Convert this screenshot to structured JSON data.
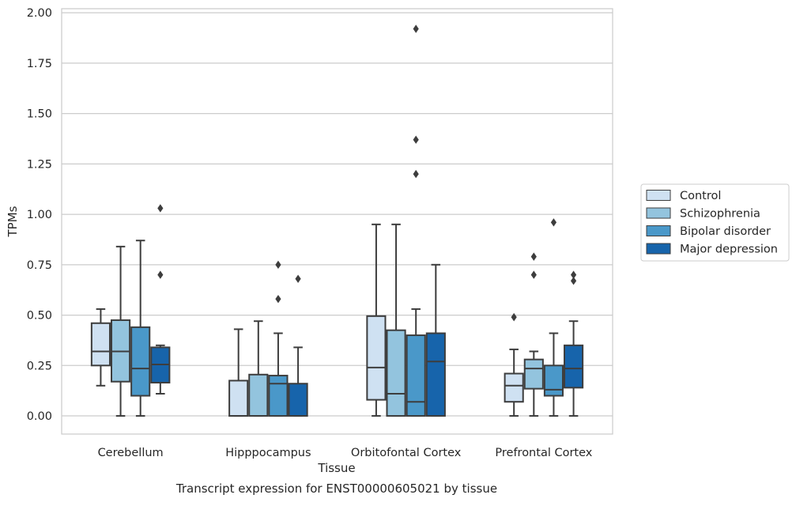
{
  "chart_data": {
    "type": "box",
    "title": "",
    "caption": "Transcript expression for ENST00000605021 by tissue",
    "xlabel": "Tissue",
    "ylabel": "TPMs",
    "ylim": [
      -0.09,
      2.02
    ],
    "yticks": [
      "0.00",
      "0.25",
      "0.50",
      "0.75",
      "1.00",
      "1.25",
      "1.50",
      "1.75",
      "2.00"
    ],
    "grid": "horizontal",
    "legend_position": "right",
    "categories": [
      "Cerebellum",
      "Hipppocampus",
      "Orbitofontal Cortex",
      "Prefrontal Cortex"
    ],
    "series": [
      {
        "name": "Control",
        "color": "#cfe1f2",
        "boxes": [
          {
            "whisker_low": 0.15,
            "q1": 0.25,
            "median": 0.32,
            "q3": 0.46,
            "whisker_high": 0.53,
            "outliers": []
          },
          {
            "whisker_low": 0.0,
            "q1": 0.0,
            "median": 0.0,
            "q3": 0.175,
            "whisker_high": 0.43,
            "outliers": []
          },
          {
            "whisker_low": 0.0,
            "q1": 0.08,
            "median": 0.24,
            "q3": 0.495,
            "whisker_high": 0.95,
            "outliers": []
          },
          {
            "whisker_low": 0.0,
            "q1": 0.07,
            "median": 0.15,
            "q3": 0.21,
            "whisker_high": 0.33,
            "outliers": [
              0.49
            ]
          }
        ]
      },
      {
        "name": "Schizophrenia",
        "color": "#93c4de",
        "boxes": [
          {
            "whisker_low": 0.0,
            "q1": 0.17,
            "median": 0.32,
            "q3": 0.475,
            "whisker_high": 0.84,
            "outliers": []
          },
          {
            "whisker_low": 0.0,
            "q1": 0.0,
            "median": 0.0,
            "q3": 0.205,
            "whisker_high": 0.47,
            "outliers": []
          },
          {
            "whisker_low": 0.0,
            "q1": 0.0,
            "median": 0.11,
            "q3": 0.425,
            "whisker_high": 0.95,
            "outliers": []
          },
          {
            "whisker_low": 0.0,
            "q1": 0.135,
            "median": 0.235,
            "q3": 0.28,
            "whisker_high": 0.32,
            "outliers": [
              0.7,
              0.79
            ]
          }
        ]
      },
      {
        "name": "Bipolar disorder",
        "color": "#4a98c9",
        "boxes": [
          {
            "whisker_low": 0.0,
            "q1": 0.1,
            "median": 0.235,
            "q3": 0.44,
            "whisker_high": 0.87,
            "outliers": []
          },
          {
            "whisker_low": 0.0,
            "q1": 0.0,
            "median": 0.16,
            "q3": 0.2,
            "whisker_high": 0.41,
            "outliers": [
              0.58,
              0.75
            ]
          },
          {
            "whisker_low": 0.0,
            "q1": 0.0,
            "median": 0.07,
            "q3": 0.4,
            "whisker_high": 0.53,
            "outliers": [
              1.2,
              1.37,
              1.92
            ]
          },
          {
            "whisker_low": 0.0,
            "q1": 0.1,
            "median": 0.13,
            "q3": 0.25,
            "whisker_high": 0.41,
            "outliers": [
              0.96
            ]
          }
        ]
      },
      {
        "name": "Major depression",
        "color": "#1764ab",
        "boxes": [
          {
            "whisker_low": 0.11,
            "q1": 0.165,
            "median": 0.255,
            "q3": 0.34,
            "whisker_high": 0.35,
            "outliers": [
              0.7,
              1.03
            ]
          },
          {
            "whisker_low": 0.0,
            "q1": 0.0,
            "median": 0.0,
            "q3": 0.16,
            "whisker_high": 0.34,
            "outliers": [
              0.68
            ]
          },
          {
            "whisker_low": 0.0,
            "q1": 0.0,
            "median": 0.27,
            "q3": 0.41,
            "whisker_high": 0.75,
            "outliers": []
          },
          {
            "whisker_low": 0.0,
            "q1": 0.14,
            "median": 0.235,
            "q3": 0.35,
            "whisker_high": 0.47,
            "outliers": [
              0.67,
              0.7
            ]
          }
        ]
      }
    ]
  }
}
